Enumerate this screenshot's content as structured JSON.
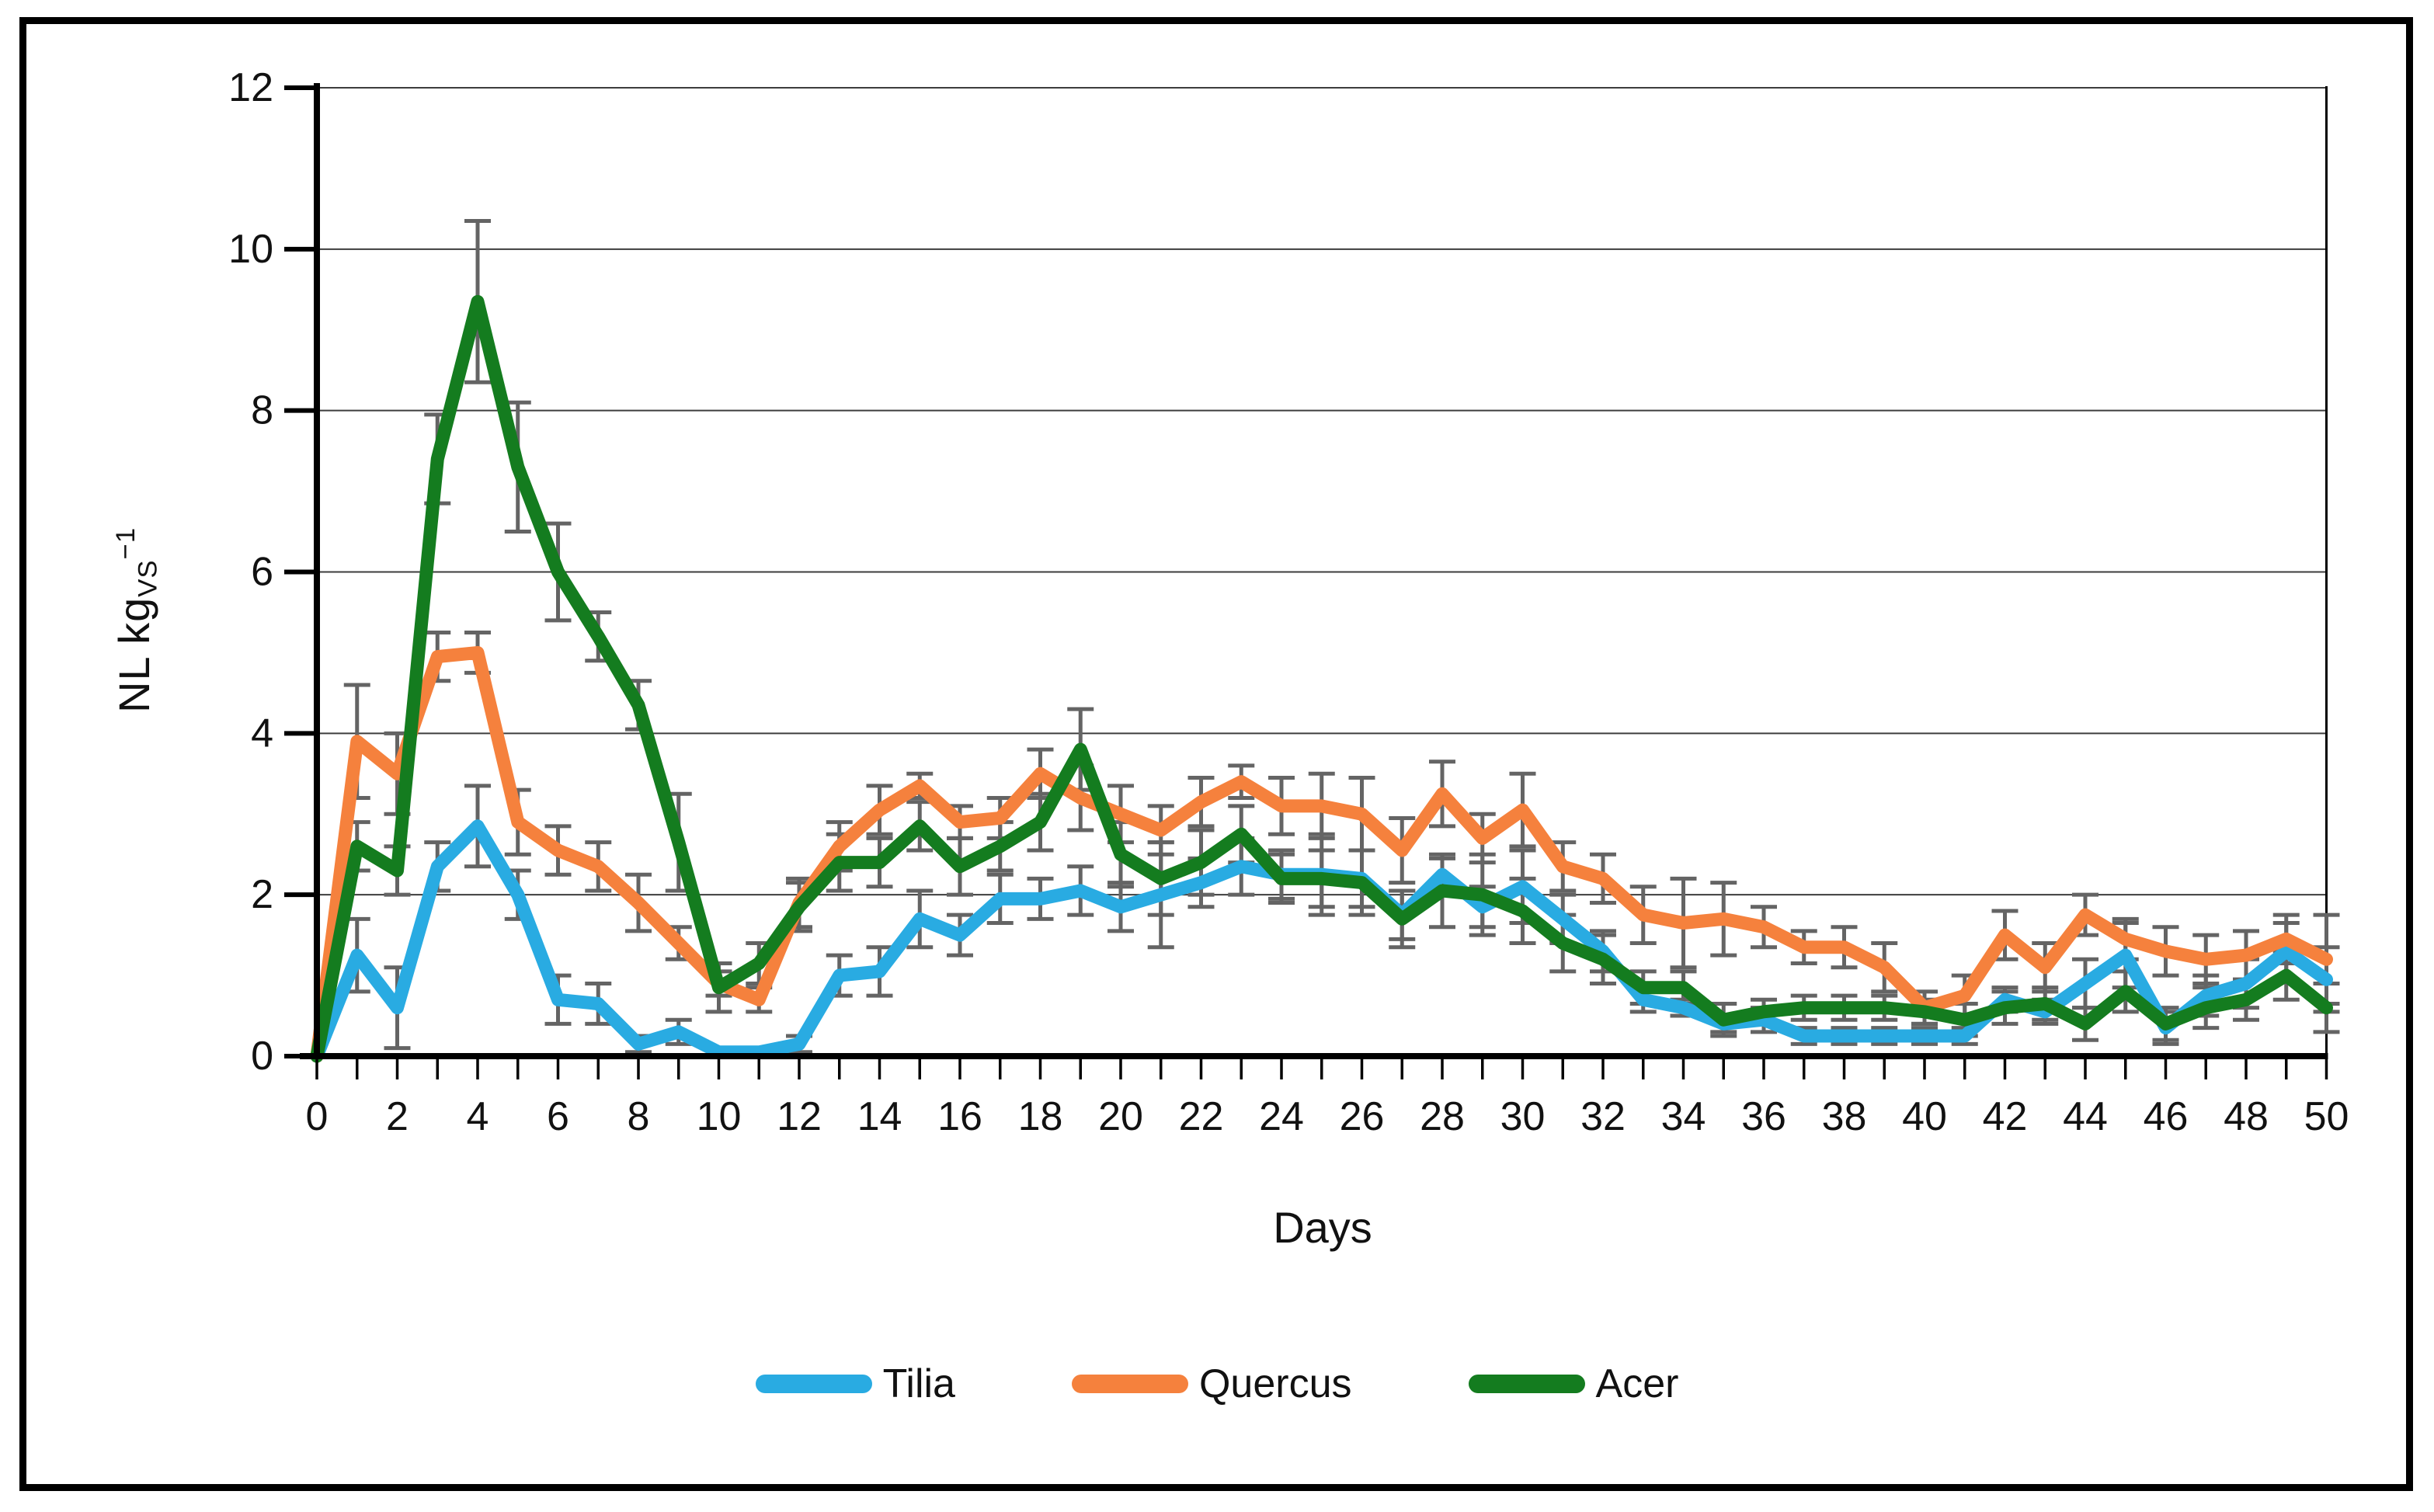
{
  "chart_data": {
    "type": "line",
    "title": "",
    "xlabel": "Days",
    "ylabel_pre": "NL kg",
    "ylabel_sub": "VS",
    "ylabel_sup": "−1",
    "xlim": [
      0,
      50
    ],
    "ylim": [
      0,
      12
    ],
    "grid": true,
    "legend_position": "bottom",
    "x": [
      0,
      1,
      2,
      3,
      4,
      5,
      6,
      7,
      8,
      9,
      10,
      11,
      12,
      13,
      14,
      15,
      16,
      17,
      18,
      19,
      20,
      21,
      22,
      23,
      24,
      25,
      26,
      27,
      28,
      29,
      30,
      31,
      32,
      33,
      34,
      35,
      36,
      37,
      38,
      39,
      40,
      41,
      42,
      43,
      44,
      45,
      46,
      47,
      48,
      49,
      50
    ],
    "x_tick_labels": [
      "0",
      "2",
      "4",
      "6",
      "8",
      "10",
      "12",
      "14",
      "16",
      "18",
      "20",
      "22",
      "24",
      "26",
      "28",
      "30",
      "32",
      "34",
      "36",
      "38",
      "40",
      "42",
      "44",
      "46",
      "48",
      "50"
    ],
    "y_tick_labels": [
      "0",
      "2",
      "4",
      "6",
      "8",
      "10",
      "12"
    ],
    "y_ticks": [
      0,
      2,
      4,
      6,
      8,
      10,
      12
    ],
    "error_bar_color": "#646464",
    "series": [
      {
        "name": "Tilia",
        "color": "#29ABE2",
        "values": [
          0,
          1.25,
          0.6,
          2.35,
          2.85,
          2.0,
          0.7,
          0.65,
          0.15,
          0.3,
          0.05,
          0.05,
          0.15,
          1.0,
          1.05,
          1.7,
          1.5,
          1.95,
          1.95,
          2.05,
          1.85,
          2.0,
          2.15,
          2.35,
          2.25,
          2.25,
          2.2,
          1.75,
          2.25,
          1.85,
          2.1,
          1.7,
          1.3,
          0.7,
          0.6,
          0.4,
          0.45,
          0.25,
          0.25,
          0.25,
          0.25,
          0.25,
          0.7,
          0.55,
          0.9,
          1.25,
          0.35,
          0.75,
          0.9,
          1.3,
          0.95
        ],
        "errors": [
          0,
          0.45,
          0.5,
          0.3,
          0.5,
          0.3,
          0.3,
          0.25,
          0.1,
          0.15,
          0.05,
          0.05,
          0.1,
          0.25,
          0.3,
          0.35,
          0.25,
          0.3,
          0.25,
          0.3,
          0.3,
          0.65,
          0.3,
          0.35,
          0.3,
          0.5,
          0.35,
          0.3,
          0.2,
          0.25,
          0.45,
          0.3,
          0.25,
          0.15,
          0.1,
          0.1,
          0.15,
          0.1,
          0.1,
          0.1,
          0.1,
          0.1,
          0.15,
          0.15,
          0.3,
          0.4,
          0.2,
          0.25,
          0.3,
          0.35,
          0.4
        ]
      },
      {
        "name": "Quercus",
        "color": "#F5813D",
        "values": [
          0,
          3.9,
          3.5,
          4.95,
          5.0,
          2.9,
          2.55,
          2.35,
          1.9,
          1.4,
          0.9,
          0.7,
          1.9,
          2.6,
          3.05,
          3.35,
          2.9,
          2.95,
          3.5,
          3.2,
          3.0,
          2.8,
          3.15,
          3.4,
          3.1,
          3.1,
          3.0,
          2.55,
          3.25,
          2.7,
          3.05,
          2.35,
          2.2,
          1.75,
          1.65,
          1.7,
          1.6,
          1.35,
          1.35,
          1.1,
          0.6,
          0.75,
          1.5,
          1.1,
          1.75,
          1.45,
          1.3,
          1.2,
          1.25,
          1.45,
          1.2
        ],
        "errors": [
          0,
          0.7,
          0.5,
          0.3,
          0.25,
          0.4,
          0.3,
          0.3,
          0.35,
          0.2,
          0.15,
          0.15,
          0.3,
          0.3,
          0.3,
          0.15,
          0.2,
          0.25,
          0.3,
          0.4,
          0.35,
          0.3,
          0.3,
          0.2,
          0.35,
          0.4,
          0.45,
          0.4,
          0.4,
          0.3,
          0.45,
          0.3,
          0.3,
          0.35,
          0.55,
          0.45,
          0.25,
          0.2,
          0.25,
          0.3,
          0.2,
          0.25,
          0.3,
          0.3,
          0.25,
          0.25,
          0.3,
          0.3,
          0.3,
          0.3,
          0.55
        ]
      },
      {
        "name": "Acer",
        "color": "#147C1F",
        "values": [
          0,
          2.6,
          2.3,
          7.4,
          9.35,
          7.3,
          6.0,
          5.2,
          4.35,
          2.65,
          0.85,
          1.15,
          1.85,
          2.4,
          2.4,
          2.85,
          2.35,
          2.6,
          2.9,
          3.8,
          2.5,
          2.2,
          2.4,
          2.75,
          2.2,
          2.2,
          2.15,
          1.7,
          2.05,
          2.0,
          1.8,
          1.4,
          1.2,
          0.85,
          0.85,
          0.45,
          0.55,
          0.6,
          0.6,
          0.6,
          0.55,
          0.45,
          0.6,
          0.65,
          0.4,
          0.8,
          0.4,
          0.6,
          0.7,
          1.0,
          0.6
        ],
        "errors": [
          0,
          0.3,
          0.3,
          0.55,
          1.0,
          0.8,
          0.6,
          0.3,
          0.3,
          0.6,
          0.3,
          0.25,
          0.3,
          0.35,
          0.3,
          0.3,
          0.35,
          0.3,
          0.35,
          0.5,
          0.4,
          0.45,
          0.4,
          0.35,
          0.3,
          0.35,
          0.4,
          0.35,
          0.45,
          0.5,
          0.4,
          0.35,
          0.3,
          0.2,
          0.2,
          0.2,
          0.15,
          0.15,
          0.15,
          0.15,
          0.15,
          0.2,
          0.2,
          0.2,
          0.2,
          0.25,
          0.2,
          0.25,
          0.25,
          0.3,
          0.3
        ]
      }
    ]
  }
}
